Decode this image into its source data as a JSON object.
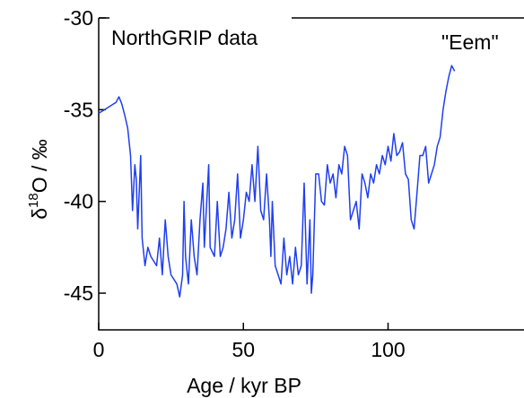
{
  "chart_data": {
    "type": "line",
    "title": "NorthGRIP data",
    "annotation": "\"Eem\"",
    "x_label": "Age / kyr BP",
    "y_label": {
      "symbol": "δ",
      "sup": "18",
      "rest": "O / ‰"
    },
    "xlim": [
      0,
      145
    ],
    "ylim": [
      -47,
      -30
    ],
    "xticks": [
      0,
      50,
      100
    ],
    "yticks": [
      -30,
      -35,
      -40,
      -45
    ],
    "grid": false,
    "x": [
      0,
      2,
      4,
      6,
      7,
      8,
      9,
      10,
      11,
      11.7,
      12.5,
      13,
      13.5,
      14.5,
      15,
      16,
      17,
      18,
      20,
      21,
      22,
      23,
      24,
      25,
      27,
      28,
      29,
      29.5,
      30,
      31,
      32,
      33,
      34,
      35,
      36,
      36.5,
      38,
      38.5,
      40,
      41,
      42,
      43,
      44,
      45,
      46,
      47,
      48,
      49,
      50,
      51,
      52,
      53,
      54,
      55,
      56,
      57,
      58,
      59,
      59.5,
      60,
      61,
      62,
      63,
      64,
      65,
      66,
      67,
      68,
      69,
      70,
      71,
      72,
      73,
      73.5,
      74,
      75,
      76,
      77,
      78,
      79,
      80,
      81,
      82,
      83,
      84,
      85,
      86,
      87,
      88,
      89,
      90,
      91,
      92,
      93,
      94,
      95,
      96,
      97,
      98,
      99,
      100,
      101,
      102,
      103,
      104,
      105,
      106,
      107,
      108,
      109,
      110,
      111,
      112,
      113,
      114,
      115,
      116,
      117,
      118,
      119,
      120,
      121,
      122,
      123
    ],
    "series": [
      {
        "name": "NorthGRIP",
        "color": "#1f3ff0",
        "values": [
          -35.2,
          -35,
          -34.8,
          -34.6,
          -34.3,
          -34.7,
          -35.3,
          -36,
          -37.5,
          -40.5,
          -38,
          -38.8,
          -41.5,
          -37.5,
          -42,
          -43.5,
          -42.5,
          -43,
          -43.5,
          -42,
          -44,
          -41,
          -43,
          -44,
          -44.5,
          -45.2,
          -44,
          -40,
          -43,
          -44.5,
          -41,
          -43,
          -44,
          -41,
          -39,
          -42.5,
          -38,
          -42.5,
          -43,
          -40,
          -43,
          -42.5,
          -41.5,
          -39.5,
          -42,
          -41,
          -38.5,
          -42,
          -41,
          -39.5,
          -40,
          -38,
          -40,
          -37,
          -40.5,
          -41,
          -38.5,
          -41,
          -43,
          -40,
          -43.5,
          -44,
          -44.5,
          -42,
          -44,
          -43,
          -44.5,
          -42.5,
          -44,
          -43.5,
          -39,
          -44.5,
          -41,
          -45,
          -44,
          -38.5,
          -38.5,
          -40,
          -40.2,
          -38,
          -39,
          -38.5,
          -39.8,
          -38,
          -38.5,
          -37,
          -37.5,
          -41,
          -40.5,
          -40,
          -41.5,
          -38.5,
          -39,
          -39.8,
          -38.5,
          -39,
          -38,
          -38.5,
          -37.5,
          -38,
          -37,
          -37.8,
          -36.3,
          -37.5,
          -37.3,
          -36.8,
          -38.5,
          -38.8,
          -41,
          -41.5,
          -39.5,
          -37.5,
          -37.5,
          -37,
          -39,
          -38.5,
          -38,
          -37,
          -36.5,
          -35,
          -34,
          -33.2,
          -32.6,
          -32.9
        ]
      }
    ]
  }
}
